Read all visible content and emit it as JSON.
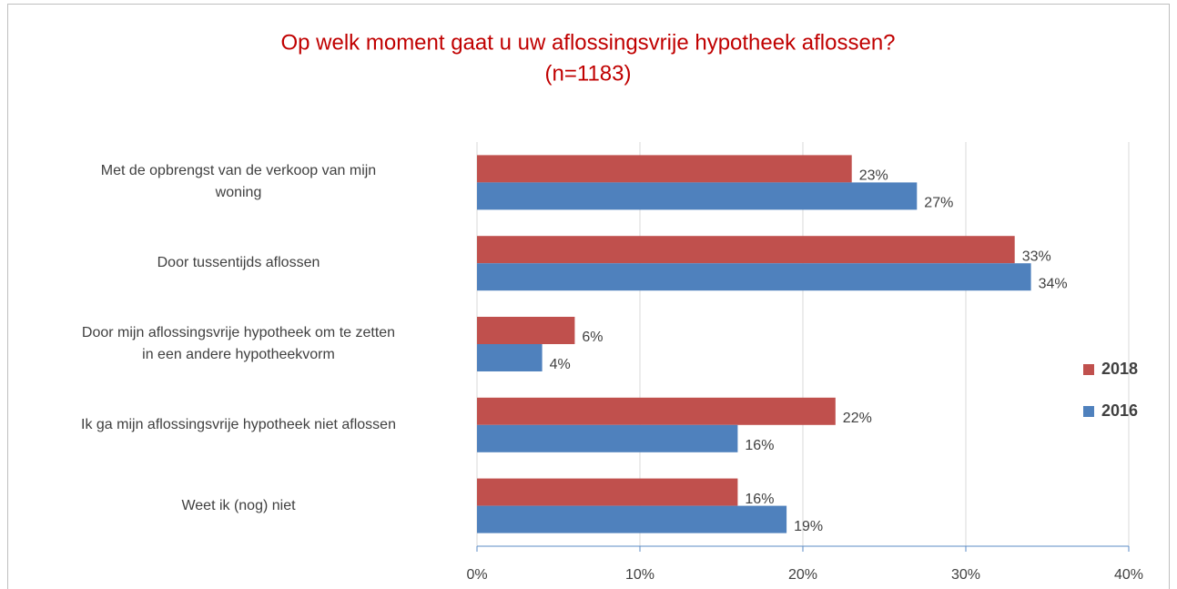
{
  "chart_data": {
    "type": "barh",
    "title": "Op welk moment gaat u uw aflossingsvrije hypotheek aflossen?",
    "subtitle": "(n=1183)",
    "categories": [
      "Met de opbrengst van de verkoop van mijn\nwoning",
      "Door tussentijds aflossen",
      "Door mijn aflossingsvrije hypotheek om te zetten\nin een andere hypotheekvorm",
      "Ik ga mijn aflossingsvrije hypotheek niet aflossen",
      "Weet ik (nog) niet"
    ],
    "series": [
      {
        "name": "2018",
        "color": "#c0504d",
        "values": [
          23,
          33,
          6,
          22,
          16
        ],
        "value_labels": [
          "23%",
          "33%",
          "6%",
          "22%",
          "16%"
        ]
      },
      {
        "name": "2016",
        "color": "#4f81bd",
        "values": [
          27,
          34,
          4,
          16,
          19
        ],
        "value_labels": [
          "27%",
          "34%",
          "4%",
          "16%",
          "19%"
        ]
      }
    ],
    "xlim": [
      0,
      40
    ],
    "xticks": [
      {
        "value": 0,
        "label": "0%"
      },
      {
        "value": 10,
        "label": "10%"
      },
      {
        "value": 20,
        "label": "20%"
      },
      {
        "value": 30,
        "label": "30%"
      },
      {
        "value": 40,
        "label": "40%"
      }
    ],
    "grid": true,
    "legend": "right"
  }
}
